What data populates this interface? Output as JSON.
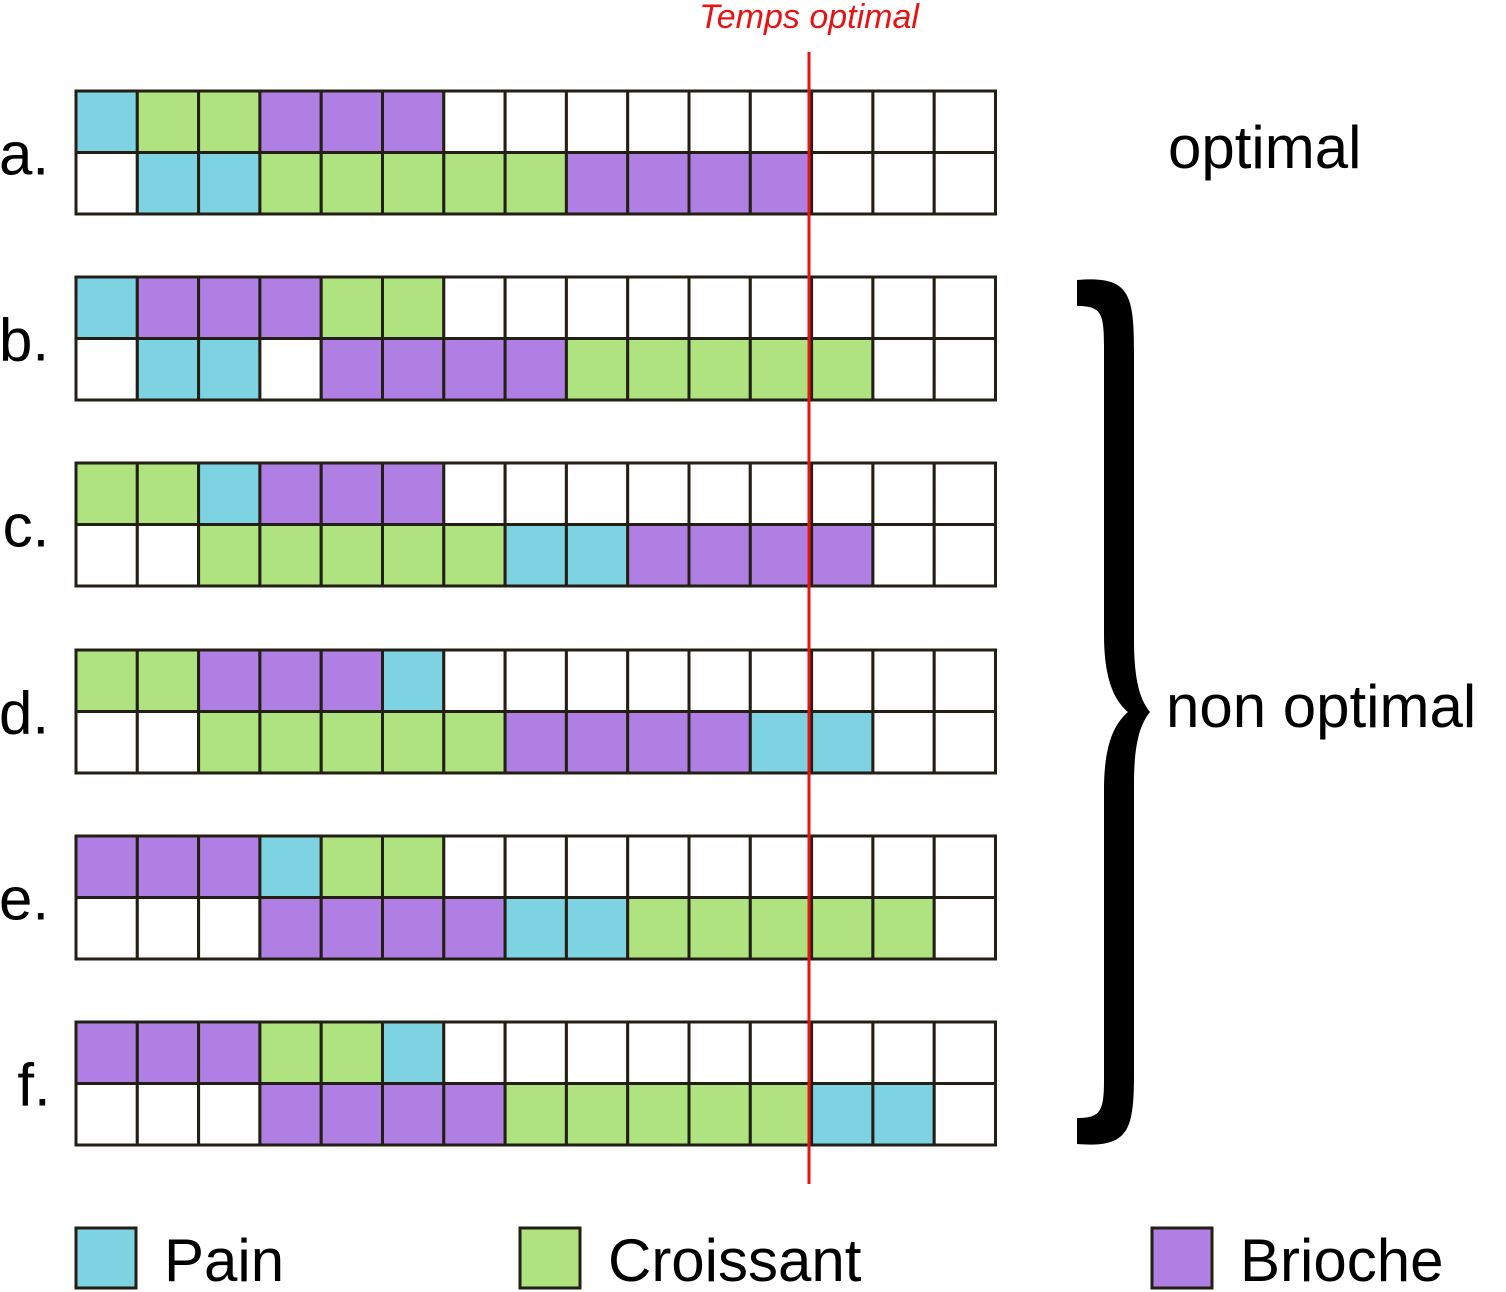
{
  "colors": {
    "pain": "#7ed3e3",
    "croissant": "#aee37f",
    "brioche": "#b07fe3",
    "empty": "#ffffff",
    "grid_stroke": "#231f14",
    "optimal_line": "#e81414",
    "text": "#000000"
  },
  "optimal_line": {
    "label": "Temps optimal"
  },
  "legend": [
    {
      "key": "pain",
      "label": "Pain"
    },
    {
      "key": "croissant",
      "label": "Croissant"
    },
    {
      "key": "brioche",
      "label": "Brioche"
    }
  ],
  "annotations": {
    "optimal": "optimal",
    "non_optimal": "non optimal"
  },
  "schedules": [
    {
      "label": "a.",
      "top": [
        "P",
        "C",
        "C",
        "B",
        "B",
        "B",
        "",
        "",
        "",
        "",
        "",
        "",
        "",
        "",
        ""
      ],
      "bottom": [
        "",
        "P",
        "P",
        "C",
        "C",
        "C",
        "C",
        "C",
        "B",
        "B",
        "B",
        "B",
        "",
        "",
        ""
      ]
    },
    {
      "label": "b.",
      "top": [
        "P",
        "B",
        "B",
        "B",
        "C",
        "C",
        "",
        "",
        "",
        "",
        "",
        "",
        "",
        "",
        ""
      ],
      "bottom": [
        "",
        "P",
        "P",
        "",
        "B",
        "B",
        "B",
        "B",
        "C",
        "C",
        "C",
        "C",
        "C",
        "",
        ""
      ]
    },
    {
      "label": "c.",
      "top": [
        "C",
        "C",
        "P",
        "B",
        "B",
        "B",
        "",
        "",
        "",
        "",
        "",
        "",
        "",
        "",
        ""
      ],
      "bottom": [
        "",
        "",
        "C",
        "C",
        "C",
        "C",
        "C",
        "P",
        "P",
        "B",
        "B",
        "B",
        "B",
        "",
        ""
      ]
    },
    {
      "label": "d.",
      "top": [
        "C",
        "C",
        "B",
        "B",
        "B",
        "P",
        "",
        "",
        "",
        "",
        "",
        "",
        "",
        "",
        ""
      ],
      "bottom": [
        "",
        "",
        "C",
        "C",
        "C",
        "C",
        "C",
        "B",
        "B",
        "B",
        "B",
        "P",
        "P",
        "",
        ""
      ]
    },
    {
      "label": "e.",
      "top": [
        "B",
        "B",
        "B",
        "P",
        "C",
        "C",
        "",
        "",
        "",
        "",
        "",
        "",
        "",
        "",
        ""
      ],
      "bottom": [
        "",
        "",
        "",
        "B",
        "B",
        "B",
        "B",
        "P",
        "P",
        "C",
        "C",
        "C",
        "C",
        "C",
        ""
      ]
    },
    {
      "label": "f.",
      "top": [
        "B",
        "B",
        "B",
        "C",
        "C",
        "P",
        "",
        "",
        "",
        "",
        "",
        "",
        "",
        "",
        ""
      ],
      "bottom": [
        "",
        "",
        "",
        "B",
        "B",
        "B",
        "B",
        "C",
        "C",
        "C",
        "C",
        "C",
        "P",
        "P",
        ""
      ]
    }
  ]
}
